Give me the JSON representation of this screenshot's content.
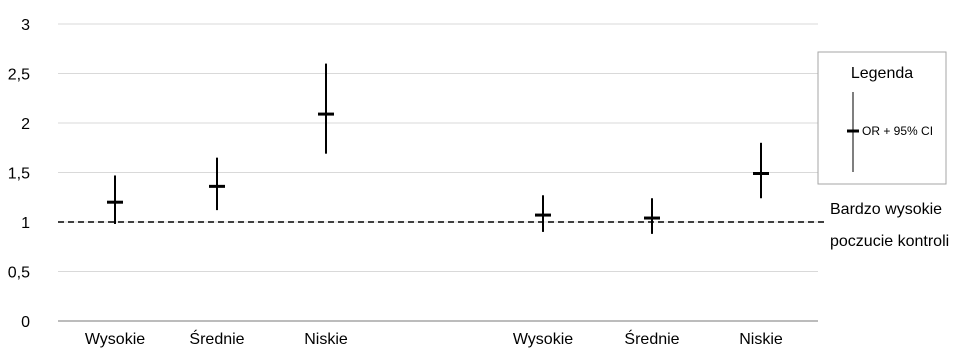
{
  "chart_data": {
    "type": "errorbar",
    "ylim": [
      0,
      3
    ],
    "y_ticks": [
      "0",
      "0,5",
      "1",
      "1,5",
      "2",
      "2,5",
      "3"
    ],
    "y_tick_values": [
      0,
      0.5,
      1,
      1.5,
      2,
      2.5,
      3
    ],
    "grid": true,
    "categories": [
      "Wysokie",
      "Średnie",
      "Niskie",
      "Wysokie",
      "Średnie",
      "Niskie"
    ],
    "points": [
      {
        "category": "Wysokie",
        "or": 1.2,
        "ci_low": 0.98,
        "ci_high": 1.47
      },
      {
        "category": "Średnie",
        "or": 1.36,
        "ci_low": 1.12,
        "ci_high": 1.65
      },
      {
        "category": "Niskie",
        "or": 2.09,
        "ci_low": 1.69,
        "ci_high": 2.6
      },
      {
        "category": "Wysokie",
        "or": 1.07,
        "ci_low": 0.9,
        "ci_high": 1.27
      },
      {
        "category": "Średnie",
        "or": 1.04,
        "ci_low": 0.88,
        "ci_high": 1.24
      },
      {
        "category": "Niskie",
        "or": 1.49,
        "ci_low": 1.24,
        "ci_high": 1.8
      }
    ],
    "reference_line": {
      "value": 1,
      "label_line1": "Bardzo wysokie",
      "label_line2": "poczucie kontroli"
    },
    "legend": {
      "title": "Legenda",
      "entry": "OR + 95% CI",
      "position": "right"
    }
  }
}
